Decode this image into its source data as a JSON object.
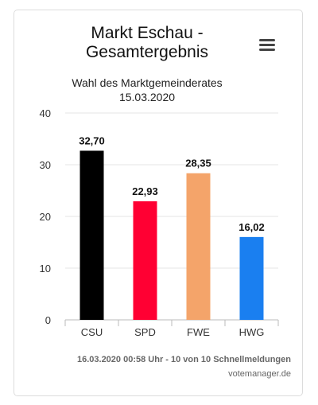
{
  "chart_data": {
    "type": "bar",
    "title": "Markt Eschau - Gesamtergebnis",
    "subtitle_line1": "Wahl des Marktgemeinderates",
    "subtitle_line2": "15.03.2020",
    "categories": [
      "CSU",
      "SPD",
      "FWE",
      "HWG"
    ],
    "values": [
      32.7,
      22.93,
      28.35,
      16.02
    ],
    "data_labels": [
      "32,70",
      "22,93",
      "28,35",
      "16,02"
    ],
    "colors": [
      "#000000",
      "#ff0033",
      "#f4a46a",
      "#1a7ff0"
    ],
    "ylim": [
      0,
      40
    ],
    "yticks": [
      "0",
      "10",
      "20",
      "30",
      "40"
    ],
    "grid": true,
    "legend": "none"
  },
  "footer": {
    "credits": "16.03.2020 00:58 Uhr - 10 von 10 Schnellmeldungen",
    "source": "votemanager.de"
  },
  "menu": {
    "icon": "hamburger-menu-icon"
  }
}
